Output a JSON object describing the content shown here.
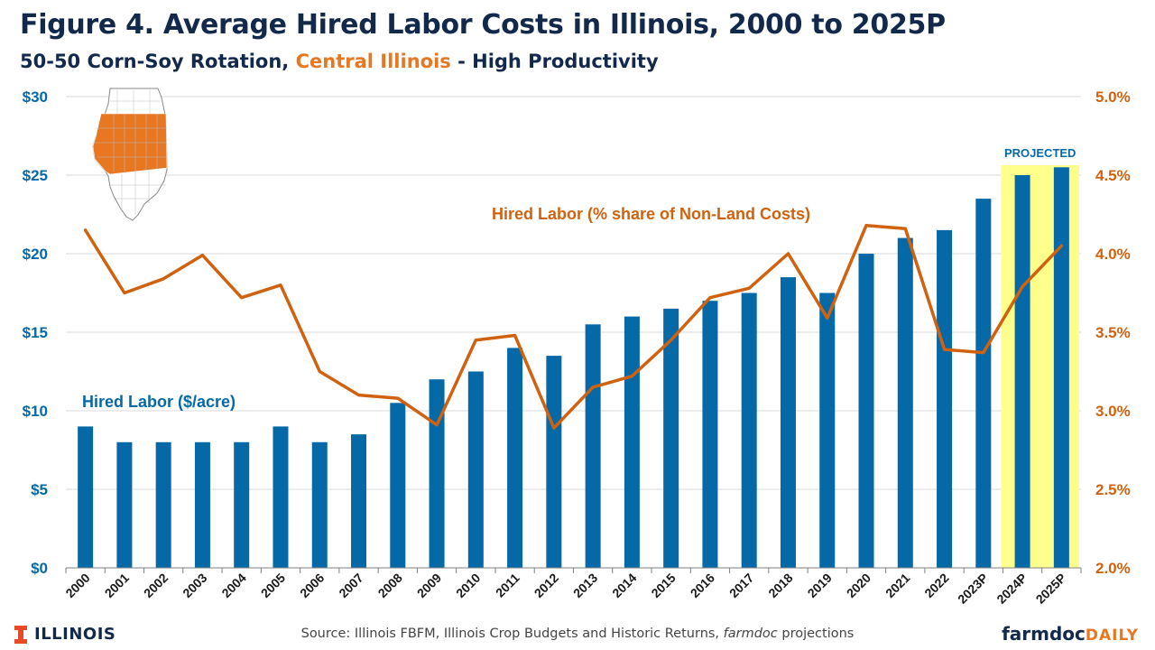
{
  "header": {
    "title": "Figure 4. Average Hired Labor Costs in Illinois, 2000 to 2025P",
    "subtitle_before": "50-50 Corn-Soy Rotation, ",
    "subtitle_highlight": "Central Illinois",
    "subtitle_after": " - High Productivity"
  },
  "footer": {
    "logo_text": "ILLINOIS",
    "source_main": "Source: Illinois FBFM, Illinois Crop Budgets and Historic Returns, ",
    "source_italic": "farmdoc",
    "source_end": " projections",
    "brand_a": "farmdoc",
    "brand_b": "DAILY"
  },
  "colors": {
    "navy": "#13294b",
    "bar_blue": "#0569a8",
    "line_orange": "#d0620f",
    "projected_highlight": "#ffff8c",
    "map_region": "#e87722"
  },
  "chart_data": {
    "type": "bar",
    "categories": [
      "2000",
      "2001",
      "2002",
      "2003",
      "2004",
      "2005",
      "2006",
      "2007",
      "2008",
      "2009",
      "2010",
      "2011",
      "2012",
      "2013",
      "2014",
      "2015",
      "2016",
      "2017",
      "2018",
      "2019",
      "2020",
      "2021",
      "2022",
      "2023P",
      "2024P",
      "2025P"
    ],
    "series": [
      {
        "name": "Hired Labor ($/acre)",
        "type": "bar",
        "axis": "left",
        "values": [
          9,
          8,
          8,
          8,
          8,
          9,
          8,
          8.5,
          10.5,
          12,
          12.5,
          14,
          13.5,
          15.5,
          16,
          16.5,
          17,
          17.5,
          18.5,
          17.5,
          20,
          21,
          21.5,
          23.5,
          25,
          25.5
        ]
      },
      {
        "name": "Hired Labor (% share of Non-Land Costs)",
        "type": "line",
        "axis": "right",
        "values": [
          4.15,
          3.75,
          3.84,
          3.99,
          3.72,
          3.8,
          3.25,
          3.1,
          3.08,
          2.91,
          3.45,
          3.48,
          2.89,
          3.15,
          3.22,
          3.45,
          3.72,
          3.78,
          4.0,
          3.59,
          4.18,
          4.16,
          3.39,
          3.37,
          3.79,
          4.05
        ]
      }
    ],
    "left_axis": {
      "min": 0,
      "max": 30,
      "ticks": [
        "$0",
        "$5",
        "$10",
        "$15",
        "$20",
        "$25",
        "$30"
      ]
    },
    "right_axis": {
      "min": 2.0,
      "max": 5.0,
      "ticks": [
        "2.0%",
        "2.5%",
        "3.0%",
        "3.5%",
        "4.0%",
        "4.5%",
        "5.0%"
      ]
    },
    "projected_categories": [
      "2024P",
      "2025P"
    ],
    "projected_label": "PROJECTED",
    "grid": true,
    "bar_label": "Hired Labor ($/acre)",
    "line_label": "Hired Labor (% share of Non-Land Costs)"
  }
}
